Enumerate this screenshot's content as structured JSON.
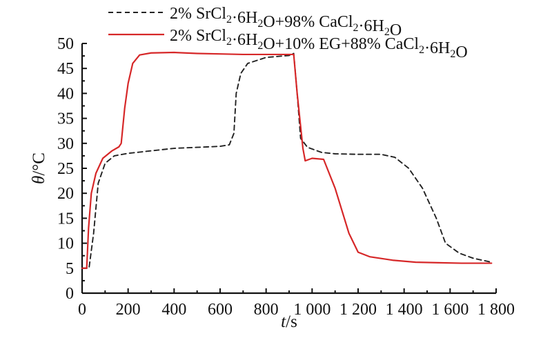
{
  "chart_data": {
    "type": "line",
    "title": "",
    "xlabel": "t/s",
    "ylabel": "θ/°C",
    "xlim": [
      0,
      1800
    ],
    "ylim": [
      0,
      50
    ],
    "x_ticks": [
      0,
      200,
      400,
      600,
      800,
      1000,
      1200,
      1400,
      1600,
      1800
    ],
    "x_tick_labels": [
      "0",
      "200",
      "400",
      "600",
      "800",
      "1 000",
      "1 200",
      "1 400",
      "1 600",
      "1 800"
    ],
    "y_ticks": [
      0,
      5,
      10,
      15,
      20,
      25,
      30,
      35,
      40,
      45,
      50
    ],
    "y_tick_labels": [
      "0",
      "5",
      "10",
      "15",
      "20",
      "25",
      "30",
      "35",
      "40",
      "45",
      "50"
    ],
    "grid": false,
    "legend_position": "top",
    "series": [
      {
        "name": "2% SrCl2·6H2O+98% CaCl2·6H2O",
        "color": "#222222",
        "dash": "dashed",
        "points": [
          [
            0,
            5
          ],
          [
            30,
            5
          ],
          [
            50,
            12
          ],
          [
            70,
            22
          ],
          [
            100,
            26
          ],
          [
            140,
            27.5
          ],
          [
            200,
            28
          ],
          [
            300,
            28.5
          ],
          [
            400,
            29
          ],
          [
            500,
            29.2
          ],
          [
            600,
            29.4
          ],
          [
            640,
            29.7
          ],
          [
            660,
            32
          ],
          [
            670,
            40
          ],
          [
            690,
            44
          ],
          [
            720,
            46
          ],
          [
            800,
            47.2
          ],
          [
            900,
            47.6
          ],
          [
            920,
            48
          ],
          [
            935,
            40
          ],
          [
            950,
            31
          ],
          [
            980,
            29.2
          ],
          [
            1040,
            28.2
          ],
          [
            1100,
            27.9
          ],
          [
            1200,
            27.8
          ],
          [
            1300,
            27.8
          ],
          [
            1360,
            27.2
          ],
          [
            1420,
            25
          ],
          [
            1480,
            21
          ],
          [
            1540,
            15
          ],
          [
            1580,
            10
          ],
          [
            1640,
            8
          ],
          [
            1700,
            7
          ],
          [
            1780,
            6.2
          ]
        ]
      },
      {
        "name": "2% SrCl2·6H2O+10% EG+88% CaCl2·6H2O",
        "color": "#d62728",
        "dash": "solid",
        "points": [
          [
            0,
            5
          ],
          [
            20,
            5
          ],
          [
            28,
            13
          ],
          [
            40,
            20
          ],
          [
            60,
            24
          ],
          [
            90,
            27
          ],
          [
            130,
            28.5
          ],
          [
            160,
            29.3
          ],
          [
            170,
            30
          ],
          [
            185,
            37
          ],
          [
            200,
            42
          ],
          [
            220,
            46
          ],
          [
            250,
            47.7
          ],
          [
            300,
            48.1
          ],
          [
            400,
            48.2
          ],
          [
            500,
            48
          ],
          [
            600,
            47.9
          ],
          [
            700,
            47.8
          ],
          [
            800,
            47.8
          ],
          [
            920,
            47.8
          ],
          [
            935,
            40
          ],
          [
            960,
            29
          ],
          [
            970,
            26.5
          ],
          [
            1000,
            27
          ],
          [
            1050,
            26.8
          ],
          [
            1100,
            21
          ],
          [
            1160,
            12
          ],
          [
            1200,
            8.2
          ],
          [
            1250,
            7.3
          ],
          [
            1350,
            6.6
          ],
          [
            1450,
            6.2
          ],
          [
            1550,
            6.1
          ],
          [
            1650,
            6.0
          ],
          [
            1780,
            6.0
          ]
        ]
      }
    ]
  },
  "legend": {
    "items": [
      {
        "series_index": 0,
        "label_parts": [
          {
            "text": "2% SrCl",
            "sub": false
          },
          {
            "text": "2",
            "sub": true
          },
          {
            "text": "·6H",
            "sub": false
          },
          {
            "text": "2",
            "sub": true
          },
          {
            "text": "O+98% CaCl",
            "sub": false
          },
          {
            "text": "2",
            "sub": true
          },
          {
            "text": "·6H",
            "sub": false
          },
          {
            "text": "2",
            "sub": true
          },
          {
            "text": "O",
            "sub": false
          }
        ]
      },
      {
        "series_index": 1,
        "label_parts": [
          {
            "text": "2% SrCl",
            "sub": false
          },
          {
            "text": "2",
            "sub": true
          },
          {
            "text": "·6H",
            "sub": false
          },
          {
            "text": "2",
            "sub": true
          },
          {
            "text": "O+10% EG+88% CaCl",
            "sub": false
          },
          {
            "text": "2",
            "sub": true
          },
          {
            "text": "·6H",
            "sub": false
          },
          {
            "text": "2",
            "sub": true
          },
          {
            "text": "O",
            "sub": false
          }
        ]
      }
    ]
  },
  "axis_title_parts": {
    "x": [
      {
        "text": "t",
        "italic": true
      },
      {
        "text": "/s",
        "italic": false
      }
    ],
    "y": [
      {
        "text": "θ",
        "italic": true
      },
      {
        "text": "/°C",
        "italic": false
      }
    ]
  }
}
